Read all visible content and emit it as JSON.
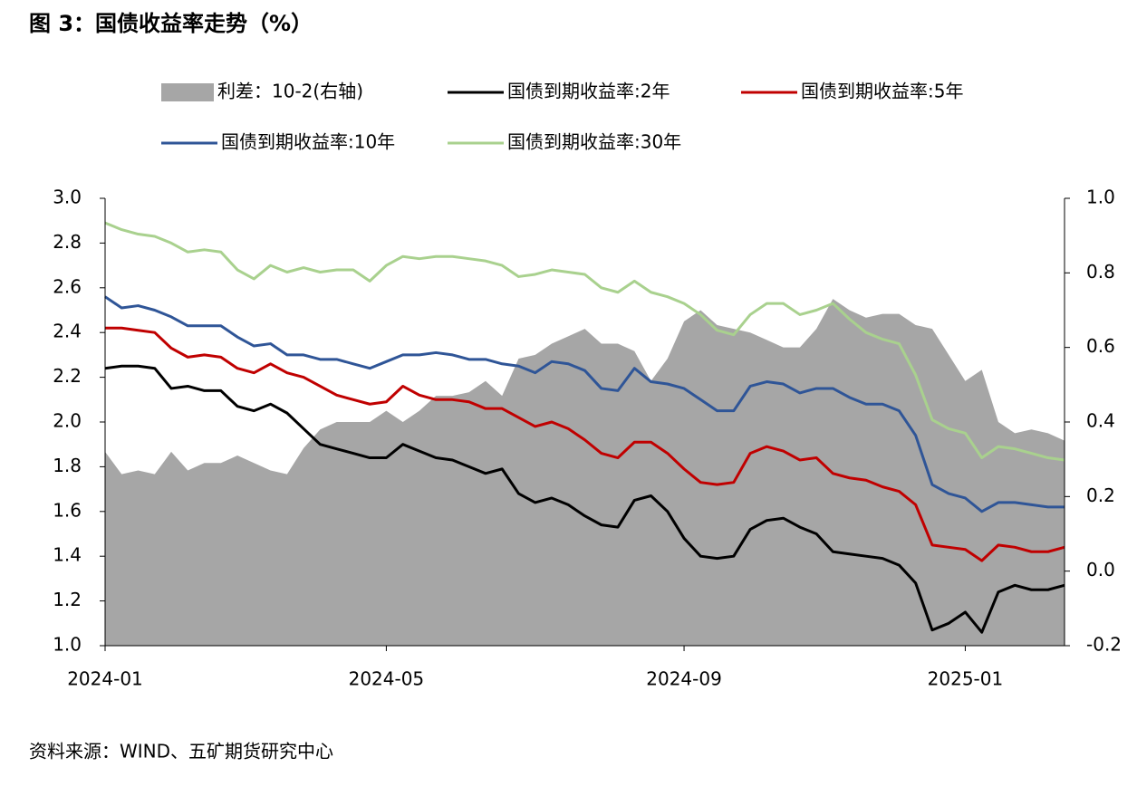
{
  "chart_data": {
    "type": "line",
    "title": "图 3：国债收益率走势（%）",
    "source": "资料来源：WIND、五矿期货研究中心",
    "categories": [
      "2024-01",
      null,
      null,
      null,
      null,
      null,
      null,
      null,
      null,
      null,
      null,
      null,
      null,
      null,
      null,
      null,
      null,
      "2024-05",
      null,
      null,
      null,
      null,
      null,
      null,
      null,
      null,
      null,
      null,
      null,
      null,
      null,
      null,
      null,
      null,
      null,
      "2024-09",
      null,
      null,
      null,
      null,
      null,
      null,
      null,
      null,
      null,
      null,
      null,
      null,
      null,
      null,
      null,
      null,
      "2025-01",
      null,
      null,
      null,
      null,
      null,
      null
    ],
    "series": [
      {
        "name": "利差：10-2(右轴)",
        "type": "area",
        "axis": "y2",
        "color": "#a6a6a6",
        "values": [
          0.32,
          0.26,
          0.27,
          0.26,
          0.32,
          0.27,
          0.29,
          0.29,
          0.31,
          0.29,
          0.27,
          0.26,
          0.33,
          0.38,
          0.4,
          0.4,
          0.4,
          0.43,
          0.4,
          0.43,
          0.47,
          0.47,
          0.48,
          0.51,
          0.47,
          0.57,
          0.58,
          0.61,
          0.63,
          0.65,
          0.61,
          0.61,
          0.59,
          0.51,
          0.57,
          0.67,
          0.7,
          0.66,
          0.65,
          0.64,
          0.62,
          0.6,
          0.6,
          0.65,
          0.73,
          0.7,
          0.68,
          0.69,
          0.69,
          0.66,
          0.65,
          0.58,
          0.51,
          0.54,
          0.4,
          0.37,
          0.38,
          0.37,
          0.35
        ]
      },
      {
        "name": "国债到期收益率:2年",
        "color": "#000000",
        "values": [
          2.24,
          2.25,
          2.25,
          2.24,
          2.15,
          2.16,
          2.14,
          2.14,
          2.07,
          2.05,
          2.08,
          2.04,
          1.97,
          1.9,
          1.88,
          1.86,
          1.84,
          1.84,
          1.9,
          1.87,
          1.84,
          1.83,
          1.8,
          1.77,
          1.79,
          1.68,
          1.64,
          1.66,
          1.63,
          1.58,
          1.54,
          1.53,
          1.65,
          1.67,
          1.6,
          1.48,
          1.4,
          1.39,
          1.4,
          1.52,
          1.56,
          1.57,
          1.53,
          1.5,
          1.42,
          1.41,
          1.4,
          1.39,
          1.36,
          1.28,
          1.07,
          1.1,
          1.15,
          1.06,
          1.24,
          1.27,
          1.25,
          1.25,
          1.27
        ]
      },
      {
        "name": "国债到期收益率:5年",
        "color": "#c00000",
        "values": [
          2.42,
          2.42,
          2.41,
          2.4,
          2.33,
          2.29,
          2.3,
          2.29,
          2.24,
          2.22,
          2.26,
          2.22,
          2.2,
          2.16,
          2.12,
          2.1,
          2.08,
          2.09,
          2.16,
          2.12,
          2.1,
          2.1,
          2.09,
          2.06,
          2.06,
          2.02,
          1.98,
          2.0,
          1.97,
          1.92,
          1.86,
          1.84,
          1.91,
          1.91,
          1.86,
          1.79,
          1.73,
          1.72,
          1.73,
          1.86,
          1.89,
          1.87,
          1.83,
          1.84,
          1.77,
          1.75,
          1.74,
          1.71,
          1.69,
          1.63,
          1.45,
          1.44,
          1.43,
          1.38,
          1.45,
          1.44,
          1.42,
          1.42,
          1.44
        ]
      },
      {
        "name": "国债到期收益率:10年",
        "color": "#2f5597",
        "values": [
          2.56,
          2.51,
          2.52,
          2.5,
          2.47,
          2.43,
          2.43,
          2.43,
          2.38,
          2.34,
          2.35,
          2.3,
          2.3,
          2.28,
          2.28,
          2.26,
          2.24,
          2.27,
          2.3,
          2.3,
          2.31,
          2.3,
          2.28,
          2.28,
          2.26,
          2.25,
          2.22,
          2.27,
          2.26,
          2.23,
          2.15,
          2.14,
          2.24,
          2.18,
          2.17,
          2.15,
          2.1,
          2.05,
          2.05,
          2.16,
          2.18,
          2.17,
          2.13,
          2.15,
          2.15,
          2.11,
          2.08,
          2.08,
          2.05,
          1.94,
          1.72,
          1.68,
          1.66,
          1.6,
          1.64,
          1.64,
          1.63,
          1.62,
          1.62
        ]
      },
      {
        "name": "国债到期收益率:30年",
        "color": "#a9d18e",
        "values": [
          2.89,
          2.86,
          2.84,
          2.83,
          2.8,
          2.76,
          2.77,
          2.76,
          2.68,
          2.64,
          2.7,
          2.67,
          2.69,
          2.67,
          2.68,
          2.68,
          2.63,
          2.7,
          2.74,
          2.73,
          2.74,
          2.74,
          2.73,
          2.72,
          2.7,
          2.65,
          2.66,
          2.68,
          2.67,
          2.66,
          2.6,
          2.58,
          2.63,
          2.58,
          2.56,
          2.53,
          2.48,
          2.41,
          2.39,
          2.48,
          2.53,
          2.53,
          2.48,
          2.5,
          2.53,
          2.46,
          2.4,
          2.37,
          2.35,
          2.21,
          2.01,
          1.97,
          1.95,
          1.84,
          1.89,
          1.88,
          1.86,
          1.84,
          1.83
        ]
      }
    ],
    "ylim": [
      1,
      3
    ],
    "yticks": [
      {
        "value": 1,
        "label": "1.0"
      },
      1.2,
      1.4,
      1.6,
      1.8,
      {
        "value": 2,
        "label": "2.0"
      },
      2.2,
      2.4,
      2.6,
      2.8,
      {
        "value": 3,
        "label": "3.0"
      }
    ],
    "y2lim": [
      -0.2,
      1
    ],
    "y2ticks": [
      -0.2,
      {
        "value": 0,
        "label": "0.0"
      },
      0.2,
      0.4,
      0.6,
      0.8,
      {
        "value": 1,
        "label": "1.0"
      }
    ]
  }
}
